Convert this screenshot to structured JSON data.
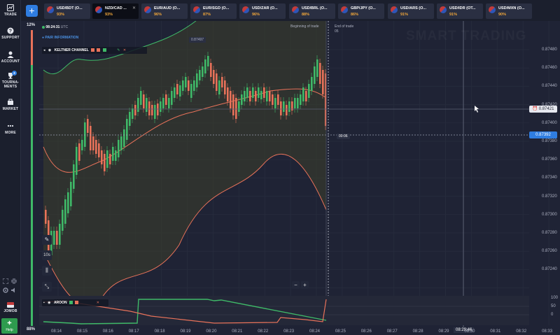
{
  "sidebar": {
    "items": [
      {
        "label": "TRADE",
        "icon": "trade-icon"
      },
      {
        "label": "SUPPORT",
        "icon": "support-icon"
      },
      {
        "label": "ACCOUNT",
        "icon": "account-icon"
      },
      {
        "label": "TOURNA-",
        "label2": "MENTS",
        "icon": "trophy-icon",
        "badge": "3"
      },
      {
        "label": "MARKET",
        "icon": "market-icon"
      },
      {
        "label": "MORE",
        "icon": "more-icon"
      }
    ],
    "user_label": "JOMOB",
    "help_label": "Help"
  },
  "sentiment": {
    "top_pct": "12%",
    "bottom_pct": "88%",
    "top_color": "#e8725a",
    "bottom_color": "#3fb968"
  },
  "topbar": {
    "add_label": "+",
    "tabs": [
      {
        "name": "USD/BDT (O...",
        "pct": "93%",
        "active": false
      },
      {
        "name": "NZD/CAD ...",
        "pct": "93%",
        "active": true
      },
      {
        "name": "EUR/AUD (O...",
        "pct": "96%",
        "active": false
      },
      {
        "name": "EUR/SGD (O...",
        "pct": "87%",
        "active": false
      },
      {
        "name": "USD/ZAR (O...",
        "pct": "96%",
        "active": false
      },
      {
        "name": "USD/BRL (O...",
        "pct": "88%",
        "active": false
      },
      {
        "name": "GBP/JPY (O...",
        "pct": "86%",
        "active": false
      },
      {
        "name": "USD/ARS (O...",
        "pct": "91%",
        "active": false
      },
      {
        "name": "USD/IDR (OT...",
        "pct": "91%",
        "active": false
      },
      {
        "name": "USD/MXN (O...",
        "pct": "90%",
        "active": false
      }
    ]
  },
  "chart": {
    "clock": "08:24:31",
    "timezone": "UTC",
    "pair_info": "PAIR INFORMATION",
    "indicator_1": "KELTNER CHANNEL",
    "indicator_2": "AROON",
    "watermark": "SMART TRADING",
    "beginning_label": "Beginning of trade",
    "end_label": "End of trade",
    "end_time": "05",
    "current_price": "0.87421",
    "strike_price": "0.87392",
    "countdown": "00:06",
    "crosshair_time": "08:29:46",
    "high_marker": "0.87497",
    "zoom_minus": "−",
    "zoom_plus": "+",
    "ylabels": [
      "0.87480",
      "0.87460",
      "0.87440",
      "0.87420",
      "0.87400",
      "0.87380",
      "0.87360",
      "0.87340",
      "0.87320",
      "0.87300",
      "0.87280",
      "0.87260",
      "0.87240"
    ],
    "xlabels": [
      "08:14",
      "08:15",
      "08:16",
      "08:17",
      "08:18",
      "08:19",
      "08:20",
      "08:21",
      "08:22",
      "08:23",
      "08:24",
      "08:25",
      "08:26",
      "08:27",
      "08:28",
      "08:29",
      "08:30",
      "08:31",
      "08:32",
      "08:33"
    ],
    "aroon_levels": [
      "100",
      "50",
      "0"
    ],
    "up_color": "#3fb968",
    "down_color": "#e8725a",
    "keltner_fill": "#3d3f2a"
  },
  "chart_data": {
    "type": "candlestick",
    "title": "",
    "xlabel": "",
    "ylabel": "",
    "ylim": [
      0.8722,
      0.875
    ],
    "x": [
      "08:14",
      "08:15",
      "08:16",
      "08:17",
      "08:18",
      "08:19",
      "08:20",
      "08:21",
      "08:22",
      "08:23",
      "08:24"
    ],
    "close_approx": [
      0.8727,
      0.8738,
      0.8736,
      0.8739,
      0.8742,
      0.8743,
      0.8745,
      0.8742,
      0.8742,
      0.8742,
      0.87392
    ],
    "aroon": {
      "up_final": 0,
      "down_final": 100
    }
  }
}
